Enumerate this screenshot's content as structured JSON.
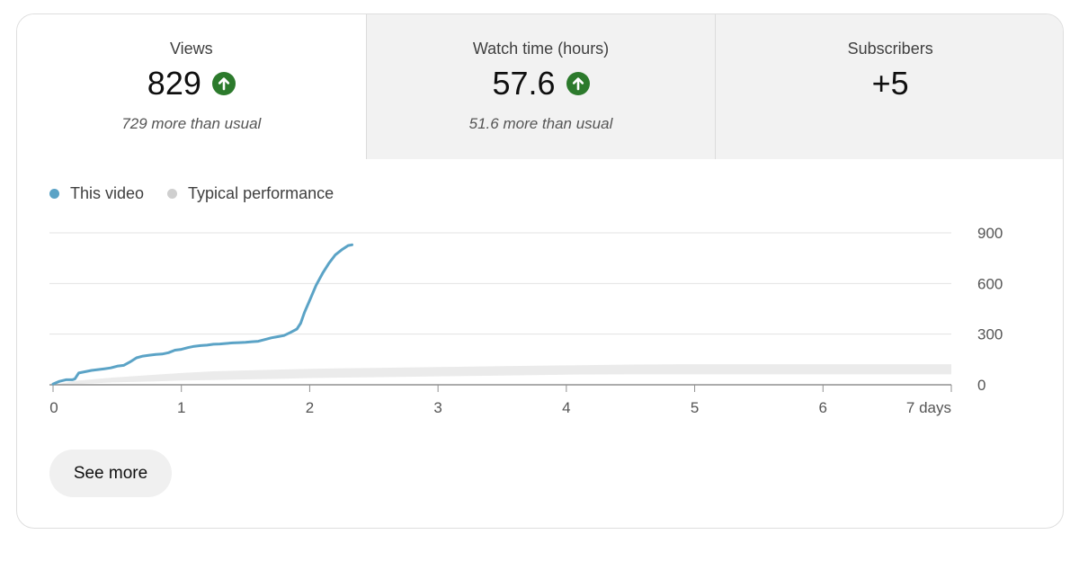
{
  "metrics": [
    {
      "label": "Views",
      "value": "829",
      "trend": "up",
      "comparison": "729 more than usual"
    },
    {
      "label": "Watch time (hours)",
      "value": "57.6",
      "trend": "up",
      "comparison": "51.6 more than usual"
    },
    {
      "label": "Subscribers",
      "value": "+5",
      "trend": "",
      "comparison": ""
    }
  ],
  "legend": {
    "this_video": "This video",
    "typical": "Typical performance"
  },
  "colors": {
    "this_video": "#5ba3c6",
    "typical": "#ebebeb",
    "typical_dot": "#cfcfcf",
    "trend_up": "#2c7a2c"
  },
  "see_more_label": "See more",
  "chart_data": {
    "type": "line",
    "x_tick_labels": [
      "0",
      "1",
      "2",
      "3",
      "4",
      "5",
      "6",
      "7 days"
    ],
    "y_tick_labels": [
      "900",
      "600",
      "300",
      "0"
    ],
    "ylim": [
      0,
      900
    ],
    "xlim": [
      0,
      7
    ],
    "grid": true,
    "series": [
      {
        "name": "This video",
        "x": [
          0,
          0.05,
          0.1,
          0.15,
          0.17,
          0.2,
          0.3,
          0.35,
          0.4,
          0.45,
          0.5,
          0.55,
          0.6,
          0.65,
          0.7,
          0.75,
          0.8,
          0.85,
          0.9,
          0.95,
          1.0,
          1.05,
          1.1,
          1.15,
          1.2,
          1.25,
          1.3,
          1.35,
          1.4,
          1.45,
          1.5,
          1.55,
          1.6,
          1.65,
          1.7,
          1.75,
          1.8,
          1.85,
          1.9,
          1.93,
          1.96,
          2.0,
          2.05,
          2.1,
          2.15,
          2.2,
          2.25,
          2.3,
          2.33
        ],
        "values": [
          5,
          20,
          30,
          30,
          35,
          70,
          85,
          90,
          95,
          100,
          110,
          115,
          135,
          160,
          170,
          175,
          180,
          182,
          190,
          205,
          210,
          220,
          228,
          232,
          235,
          240,
          242,
          245,
          248,
          250,
          252,
          255,
          258,
          268,
          278,
          285,
          292,
          310,
          330,
          365,
          430,
          500,
          590,
          660,
          720,
          770,
          800,
          825,
          829
        ]
      },
      {
        "name": "Typical performance",
        "x": [
          0,
          0.2,
          0.5,
          0.8,
          1.0,
          1.25,
          1.5,
          1.75,
          2.0,
          2.5,
          3.0,
          3.5,
          4.0,
          4.5,
          5.0,
          6.0,
          7.0
        ],
        "lower": [
          0,
          5,
          15,
          20,
          25,
          28,
          32,
          35,
          40,
          45,
          50,
          55,
          60,
          62,
          62,
          62,
          62
        ],
        "upper": [
          0,
          25,
          45,
          60,
          70,
          80,
          85,
          90,
          95,
          100,
          105,
          110,
          115,
          120,
          122,
          122,
          122
        ]
      }
    ]
  }
}
